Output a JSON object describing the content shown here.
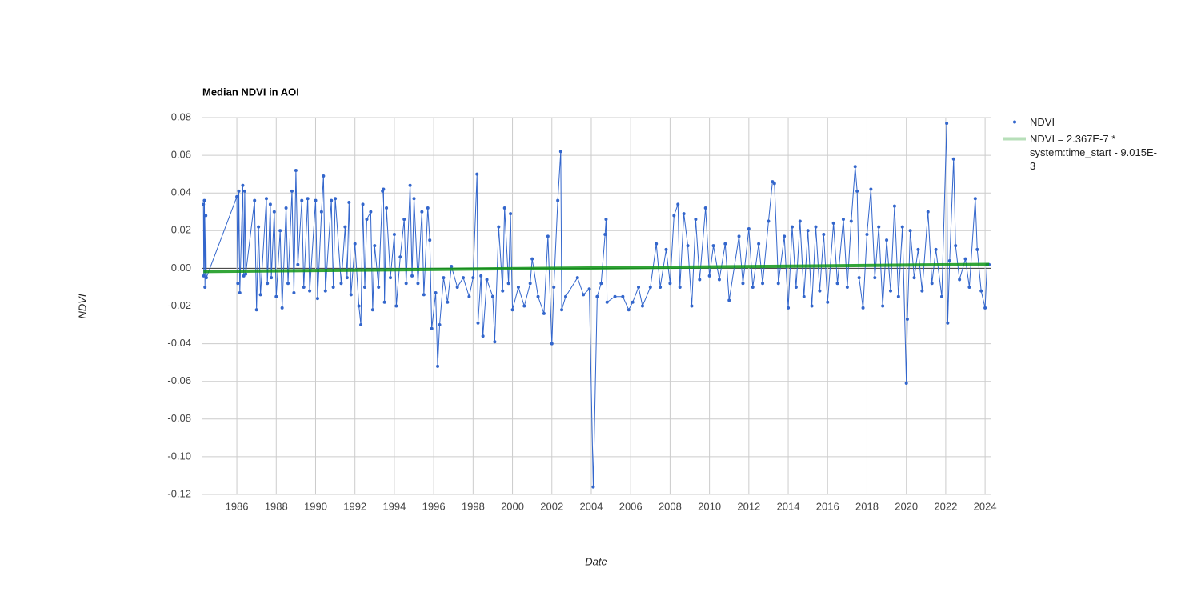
{
  "chart_data": {
    "type": "line",
    "title": "Median NDVI in AOI",
    "x_label": "Date",
    "y_label": "NDVI",
    "xlim": [
      1984.25,
      2024.28
    ],
    "xticks": [
      1986,
      1988,
      1990,
      1992,
      1994,
      1996,
      1998,
      2000,
      2002,
      2004,
      2006,
      2008,
      2010,
      2012,
      2014,
      2016,
      2018,
      2020,
      2022,
      2024
    ],
    "ylim": [
      -0.12,
      0.08
    ],
    "yticks": [
      {
        "value": -0.12,
        "label": "-0.12"
      },
      {
        "value": -0.1,
        "label": "-0.10"
      },
      -0.08,
      -0.06,
      -0.04,
      -0.02,
      {
        "value": 0,
        "label": "0.00"
      },
      0.02,
      0.04,
      0.06,
      0.08
    ],
    "grid": true,
    "legend": "right",
    "series": [
      {
        "name": "NDVI",
        "color": "#3366cc",
        "markers": true,
        "x": [
          1984.3,
          1984.32,
          1984.35,
          1984.38,
          1984.42,
          1984.45,
          1986.0,
          1986.05,
          1986.1,
          1986.15,
          1986.3,
          1986.35,
          1986.4,
          1986.45,
          1986.9,
          1987.0,
          1987.1,
          1987.2,
          1987.5,
          1987.55,
          1987.7,
          1987.75,
          1987.9,
          1988.0,
          1988.2,
          1988.3,
          1988.5,
          1988.6,
          1988.8,
          1988.9,
          1989.0,
          1989.1,
          1989.3,
          1989.4,
          1989.6,
          1989.7,
          1990.0,
          1990.1,
          1990.3,
          1990.4,
          1990.5,
          1990.8,
          1990.9,
          1991.0,
          1991.3,
          1991.5,
          1991.6,
          1991.7,
          1991.8,
          1992.0,
          1992.2,
          1992.3,
          1992.4,
          1992.5,
          1992.6,
          1992.8,
          1992.9,
          1993.0,
          1993.2,
          1993.4,
          1993.45,
          1993.5,
          1993.6,
          1993.8,
          1994.0,
          1994.1,
          1994.3,
          1994.5,
          1994.6,
          1994.8,
          1994.9,
          1995.0,
          1995.2,
          1995.4,
          1995.5,
          1995.7,
          1995.8,
          1995.9,
          1996.1,
          1996.2,
          1996.3,
          1996.5,
          1996.7,
          1996.9,
          1997.2,
          1997.5,
          1997.8,
          1998.0,
          1998.2,
          1998.25,
          1998.4,
          1998.5,
          1998.7,
          1999.0,
          1999.1,
          1999.3,
          1999.5,
          1999.6,
          1999.8,
          1999.9,
          2000.0,
          2000.3,
          2000.6,
          2000.9,
          2001.0,
          2001.3,
          2001.6,
          2001.8,
          2002.0,
          2002.1,
          2002.3,
          2002.45,
          2002.5,
          2002.7,
          2003.3,
          2003.6,
          2003.9,
          2004.1,
          2004.3,
          2004.5,
          2004.7,
          2004.75,
          2004.8,
          2005.2,
          2005.6,
          2005.9,
          2006.1,
          2006.4,
          2006.6,
          2007.0,
          2007.3,
          2007.5,
          2007.8,
          2008.0,
          2008.2,
          2008.4,
          2008.5,
          2008.7,
          2008.9,
          2009.1,
          2009.3,
          2009.5,
          2009.8,
          2010.0,
          2010.2,
          2010.5,
          2010.8,
          2011.0,
          2011.5,
          2011.7,
          2012.0,
          2012.2,
          2012.5,
          2012.7,
          2013.0,
          2013.2,
          2013.3,
          2013.5,
          2013.8,
          2014.0,
          2014.2,
          2014.4,
          2014.6,
          2014.8,
          2015.0,
          2015.2,
          2015.4,
          2015.6,
          2015.8,
          2016.0,
          2016.3,
          2016.5,
          2016.8,
          2017.0,
          2017.2,
          2017.4,
          2017.5,
          2017.6,
          2017.8,
          2018.0,
          2018.2,
          2018.4,
          2018.6,
          2018.8,
          2019.0,
          2019.2,
          2019.4,
          2019.6,
          2019.8,
          2020.0,
          2020.05,
          2020.2,
          2020.4,
          2020.6,
          2020.8,
          2021.1,
          2021.3,
          2021.5,
          2021.8,
          2022.05,
          2022.1,
          2022.2,
          2022.4,
          2022.5,
          2022.7,
          2023.0,
          2023.2,
          2023.5,
          2023.6,
          2023.8,
          2024.0,
          2024.1,
          2024.2
        ],
        "values": [
          0.034,
          -0.004,
          0.036,
          -0.01,
          0.028,
          -0.005,
          0.038,
          -0.008,
          0.041,
          -0.013,
          0.044,
          -0.004,
          0.041,
          -0.003,
          0.036,
          -0.022,
          0.022,
          -0.014,
          0.037,
          -0.008,
          0.034,
          -0.005,
          0.03,
          -0.015,
          0.02,
          -0.021,
          0.032,
          -0.008,
          0.041,
          -0.013,
          0.052,
          0.002,
          0.036,
          -0.01,
          0.037,
          -0.012,
          0.036,
          -0.016,
          0.03,
          0.049,
          -0.012,
          0.036,
          -0.01,
          0.037,
          -0.008,
          0.022,
          -0.005,
          0.035,
          -0.014,
          0.013,
          -0.02,
          -0.03,
          0.034,
          -0.01,
          0.026,
          0.03,
          -0.022,
          0.012,
          -0.01,
          0.041,
          0.042,
          -0.018,
          0.032,
          -0.005,
          0.018,
          -0.02,
          0.006,
          0.026,
          -0.008,
          0.044,
          -0.004,
          0.037,
          -0.008,
          0.03,
          -0.014,
          0.032,
          0.015,
          -0.032,
          -0.013,
          -0.052,
          -0.03,
          -0.005,
          -0.018,
          0.001,
          -0.01,
          -0.005,
          -0.015,
          -0.005,
          0.05,
          -0.029,
          -0.004,
          -0.036,
          -0.006,
          -0.015,
          -0.039,
          0.022,
          -0.012,
          0.032,
          -0.008,
          0.029,
          -0.022,
          -0.01,
          -0.02,
          -0.008,
          0.005,
          -0.015,
          -0.024,
          0.017,
          -0.04,
          -0.01,
          0.036,
          0.062,
          -0.022,
          -0.015,
          -0.005,
          -0.014,
          -0.011,
          -0.116,
          -0.015,
          -0.008,
          0.018,
          0.026,
          -0.018,
          -0.015,
          -0.015,
          -0.022,
          -0.018,
          -0.01,
          -0.02,
          -0.01,
          0.013,
          -0.01,
          0.01,
          -0.008,
          0.028,
          0.034,
          -0.01,
          0.029,
          0.012,
          -0.02,
          0.026,
          -0.006,
          0.032,
          -0.004,
          0.012,
          -0.006,
          0.013,
          -0.017,
          0.017,
          -0.008,
          0.021,
          -0.01,
          0.013,
          -0.008,
          0.025,
          0.046,
          0.045,
          -0.008,
          0.017,
          -0.021,
          0.022,
          -0.01,
          0.025,
          -0.015,
          0.02,
          -0.02,
          0.022,
          -0.012,
          0.018,
          -0.018,
          0.024,
          -0.008,
          0.026,
          -0.01,
          0.025,
          0.054,
          0.041,
          -0.005,
          -0.021,
          0.018,
          0.042,
          -0.005,
          0.022,
          -0.02,
          0.015,
          -0.012,
          0.033,
          -0.015,
          0.022,
          -0.061,
          -0.027,
          0.02,
          -0.005,
          0.01,
          -0.012,
          0.03,
          -0.008,
          0.01,
          -0.015,
          0.077,
          -0.029,
          0.004,
          0.058,
          0.012,
          -0.006,
          0.005,
          -0.01,
          0.037,
          0.01,
          -0.012,
          -0.021,
          0.002,
          0.002
        ]
      },
      {
        "name": "NDVI = 2.367E-7 * system:time_start - 9.015E-3",
        "color": "#109618",
        "trendline": true,
        "x": [
          1984.3,
          2024.2
        ],
        "values": [
          -0.0017,
          0.0021
        ]
      }
    ]
  }
}
